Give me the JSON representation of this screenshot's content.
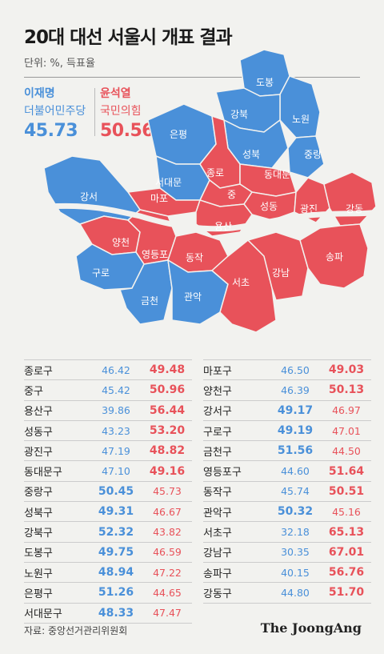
{
  "title": "20대 대선 서울시 개표 결과",
  "unit": "단위: %, 득표율",
  "colors": {
    "lee": "#4a90d9",
    "yoon": "#e8525a"
  },
  "candidates": {
    "lee": {
      "name": "이재명",
      "party": "더불어민주당",
      "percent": "45.73"
    },
    "yoon": {
      "name": "윤석열",
      "party": "국민의힘",
      "percent": "50.56"
    }
  },
  "map_labels": {
    "dobong": "도봉",
    "gangbuk": "강북",
    "nowon": "노원",
    "eunpyeong": "은평",
    "seongbuk": "성북",
    "jungnang": "중랑",
    "jongno": "종로",
    "dongdaemun": "동대문",
    "seodaemun": "서대문",
    "mapo": "마포",
    "jung": "중",
    "gangseo": "강서",
    "seongdong": "성동",
    "gwangjin": "광진",
    "gangdong": "강동",
    "yongsan": "용산",
    "yangcheon": "양천",
    "yeongdeungpo": "영등포",
    "dongjak": "동작",
    "songpa": "송파",
    "guro": "구로",
    "gangnam": "강남",
    "seocho": "서초",
    "geumcheon": "금천",
    "gwanak": "관악"
  },
  "table_left": [
    {
      "district": "종로구",
      "lee": "46.42",
      "yoon": "49.48",
      "winner": "yoon"
    },
    {
      "district": "중구",
      "lee": "45.42",
      "yoon": "50.96",
      "winner": "yoon"
    },
    {
      "district": "용산구",
      "lee": "39.86",
      "yoon": "56.44",
      "winner": "yoon"
    },
    {
      "district": "성동구",
      "lee": "43.23",
      "yoon": "53.20",
      "winner": "yoon"
    },
    {
      "district": "광진구",
      "lee": "47.19",
      "yoon": "48.82",
      "winner": "yoon"
    },
    {
      "district": "동대문구",
      "lee": "47.10",
      "yoon": "49.16",
      "winner": "yoon"
    },
    {
      "district": "중랑구",
      "lee": "50.45",
      "yoon": "45.73",
      "winner": "lee"
    },
    {
      "district": "성북구",
      "lee": "49.31",
      "yoon": "46.67",
      "winner": "lee"
    },
    {
      "district": "강북구",
      "lee": "52.32",
      "yoon": "43.82",
      "winner": "lee"
    },
    {
      "district": "도봉구",
      "lee": "49.75",
      "yoon": "46.59",
      "winner": "lee"
    },
    {
      "district": "노원구",
      "lee": "48.94",
      "yoon": "47.22",
      "winner": "lee"
    },
    {
      "district": "은평구",
      "lee": "51.26",
      "yoon": "44.65",
      "winner": "lee"
    },
    {
      "district": "서대문구",
      "lee": "48.33",
      "yoon": "47.47",
      "winner": "lee"
    }
  ],
  "table_right": [
    {
      "district": "마포구",
      "lee": "46.50",
      "yoon": "49.03",
      "winner": "yoon"
    },
    {
      "district": "양천구",
      "lee": "46.39",
      "yoon": "50.13",
      "winner": "yoon"
    },
    {
      "district": "강서구",
      "lee": "49.17",
      "yoon": "46.97",
      "winner": "lee"
    },
    {
      "district": "구로구",
      "lee": "49.19",
      "yoon": "47.01",
      "winner": "lee"
    },
    {
      "district": "금천구",
      "lee": "51.56",
      "yoon": "44.50",
      "winner": "lee"
    },
    {
      "district": "영등포구",
      "lee": "44.60",
      "yoon": "51.64",
      "winner": "yoon"
    },
    {
      "district": "동작구",
      "lee": "45.74",
      "yoon": "50.51",
      "winner": "yoon"
    },
    {
      "district": "관악구",
      "lee": "50.32",
      "yoon": "45.16",
      "winner": "lee"
    },
    {
      "district": "서초구",
      "lee": "32.18",
      "yoon": "65.13",
      "winner": "yoon"
    },
    {
      "district": "강남구",
      "lee": "30.35",
      "yoon": "67.01",
      "winner": "yoon"
    },
    {
      "district": "송파구",
      "lee": "40.15",
      "yoon": "56.76",
      "winner": "yoon"
    },
    {
      "district": "강동구",
      "lee": "44.80",
      "yoon": "51.70",
      "winner": "yoon"
    }
  ],
  "source": "자료: 중앙선거관리위원회",
  "logo": "The JoongAng"
}
